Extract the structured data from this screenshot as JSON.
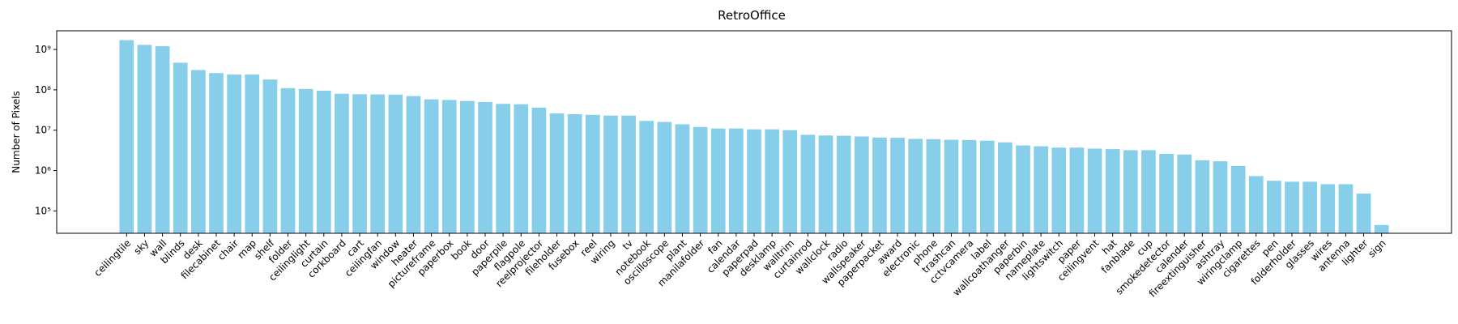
{
  "chart_data": {
    "type": "bar",
    "title": "RetroOffice",
    "ylabel": "Number of Pixels",
    "yscale": "log",
    "color": "#87ceeb",
    "categories": [
      "ceilingtile",
      "sky",
      "wall",
      "blinds",
      "desk",
      "filecabinet",
      "chair",
      "map",
      "shelf",
      "folder",
      "ceilinglight",
      "curtain",
      "corkboard",
      "cart",
      "ceilingfan",
      "window",
      "heater",
      "pictureframe",
      "paperbox",
      "book",
      "door",
      "paperpile",
      "flagpole",
      "reelprojector",
      "fileholder",
      "fusebox",
      "reel",
      "wiring",
      "tv",
      "notebook",
      "oscilloscope",
      "plant",
      "manilafolder",
      "fan",
      "calendar",
      "paperpad",
      "desklamp",
      "walltrim",
      "curtainrod",
      "wallclock",
      "radio",
      "wallspeaker",
      "paperpacket",
      "award",
      "electronic",
      "phone",
      "trashcan",
      "cctvcamera",
      "label",
      "wallcoathanger",
      "paperbin",
      "nameplate",
      "lightswitch",
      "paper",
      "ceilingvent",
      "hat",
      "fanblade",
      "cup",
      "smokedetector",
      "calender",
      "fireextinguisher",
      "ashtray",
      "wiringclamp",
      "cigarettes",
      "pen",
      "folderholder",
      "glasses",
      "wires",
      "antenna",
      "lighter",
      "sign"
    ],
    "values": [
      1700000000,
      1300000000,
      1200000000,
      470000000,
      310000000,
      260000000,
      240000000,
      240000000,
      180000000,
      110000000,
      105000000,
      95000000,
      80000000,
      78000000,
      77000000,
      76000000,
      70000000,
      58000000,
      56000000,
      53000000,
      50000000,
      45000000,
      44000000,
      36000000,
      26000000,
      25000000,
      24000000,
      23000000,
      23000000,
      17000000,
      16000000,
      14000000,
      12000000,
      11000000,
      11000000,
      10500000,
      10500000,
      10000000,
      7700000,
      7400000,
      7300000,
      7000000,
      6600000,
      6500000,
      6100000,
      6000000,
      5800000,
      5700000,
      5500000,
      5000000,
      4200000,
      4000000,
      3700000,
      3700000,
      3500000,
      3400000,
      3200000,
      3200000,
      2600000,
      2500000,
      1800000,
      1700000,
      1300000,
      730000,
      560000,
      530000,
      530000,
      460000,
      460000,
      270000,
      45000
    ],
    "ylim": [
      28000,
      2900000000
    ],
    "yticks": [
      {
        "value": 100000,
        "label": "10⁵"
      },
      {
        "value": 1000000,
        "label": "10⁶"
      },
      {
        "value": 10000000,
        "label": "10⁷"
      },
      {
        "value": 100000000,
        "label": "10⁸"
      },
      {
        "value": 1000000000,
        "label": "10⁹"
      }
    ]
  }
}
